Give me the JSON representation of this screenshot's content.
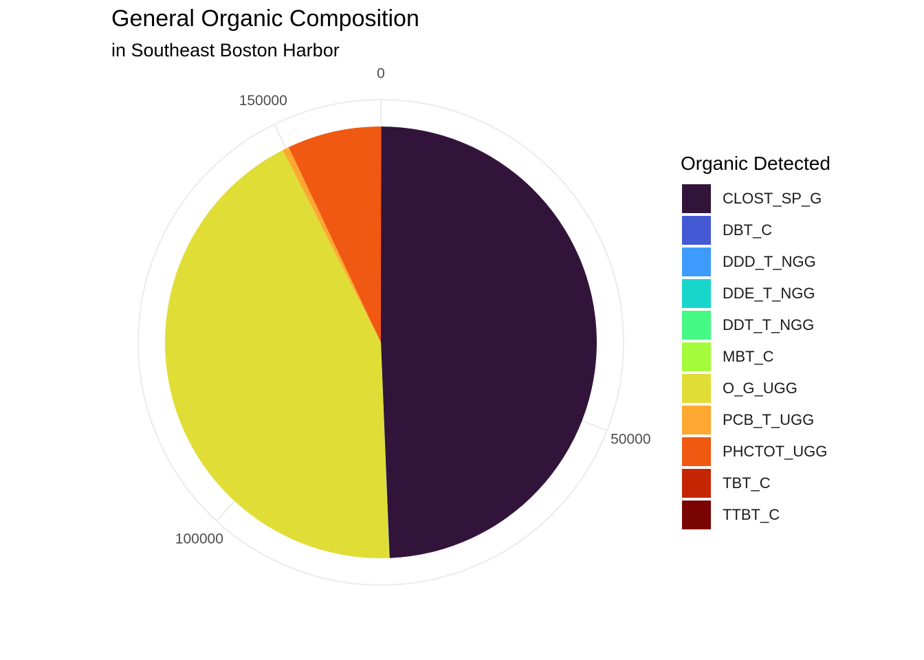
{
  "chart_data": {
    "type": "pie",
    "title": "General Organic Composition",
    "subtitle": "in Southeast Boston Harbor",
    "legend_title": "Organic Detected",
    "legend_position": "right",
    "grid": true,
    "coord": "polar (theta = cumulative value, clockwise from top)",
    "total": 161700,
    "theta_ticks": [
      0,
      50000,
      100000,
      150000
    ],
    "theta_tick_labels": [
      "0",
      "50000",
      "100000",
      "150000"
    ],
    "slices": [
      {
        "label": "CLOST_SP_G",
        "value": 79800,
        "color": "#32143A"
      },
      {
        "label": "DBT_C",
        "value": 10,
        "color": "#4459D3"
      },
      {
        "label": "DDD_T_NGG",
        "value": 10,
        "color": "#3E9BFE"
      },
      {
        "label": "DDE_T_NGG",
        "value": 10,
        "color": "#18D6CB"
      },
      {
        "label": "DDT_T_NGG",
        "value": 10,
        "color": "#46F884"
      },
      {
        "label": "MBT_C",
        "value": 10,
        "color": "#A4FC3C"
      },
      {
        "label": "O_G_UGG",
        "value": 69700,
        "color": "#E1DD37"
      },
      {
        "label": "PCB_T_UGG",
        "value": 800,
        "color": "#FEA831"
      },
      {
        "label": "PHCTOT_UGG",
        "value": 11400,
        "color": "#EF5911"
      },
      {
        "label": "TBT_C",
        "value": 10,
        "color": "#C42503"
      },
      {
        "label": "TTBT_C",
        "value": 10,
        "color": "#7A0403"
      }
    ]
  }
}
